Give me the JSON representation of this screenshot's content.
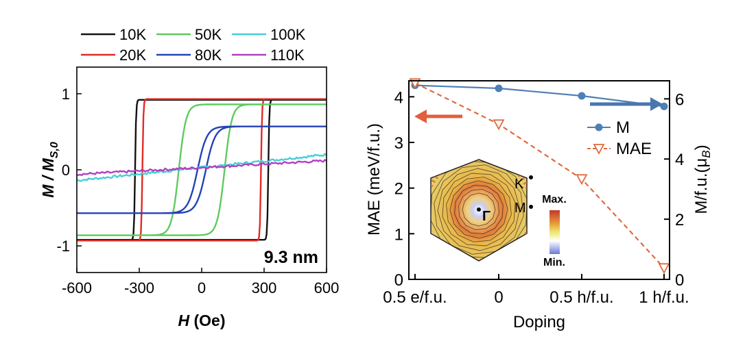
{
  "chart_data": [
    {
      "type": "line",
      "title": "",
      "xlabel": "H (Oe)",
      "ylabel": "M / M",
      "ylabel_sub": "S,0",
      "xlim": [
        -600,
        600
      ],
      "ylim": [
        -1.35,
        1.35
      ],
      "xticks": [
        -600,
        -300,
        0,
        300,
        600
      ],
      "xtick_labels": [
        "-600",
        "-300",
        "0",
        "300",
        "600"
      ],
      "yticks": [
        -1,
        0,
        1
      ],
      "ytick_labels": [
        "-1",
        "0",
        "1"
      ],
      "annotation": "9.3 nm",
      "legend": [
        {
          "label": "10K",
          "color": "#111111"
        },
        {
          "label": "50K",
          "color": "#5fca5f"
        },
        {
          "label": "100K",
          "color": "#45cfd8"
        },
        {
          "label": "20K",
          "color": "#e02a25"
        },
        {
          "label": "80K",
          "color": "#2342b8"
        },
        {
          "label": "110K",
          "color": "#b23fbf"
        }
      ],
      "series": [
        {
          "name": "10K",
          "color": "#111111",
          "hysteresis": true,
          "Ms": 0.92,
          "Hc": 320,
          "sharpness": 5
        },
        {
          "name": "20K",
          "color": "#e02a25",
          "hysteresis": true,
          "Ms": 0.93,
          "Hc": 285,
          "sharpness": 5
        },
        {
          "name": "50K",
          "color": "#5fca5f",
          "hysteresis": true,
          "Ms": 0.86,
          "Hc": 110,
          "sharpness": 35
        },
        {
          "name": "80K",
          "color": "#2342b8",
          "hysteresis": true,
          "Ms": 0.57,
          "Hc": 20,
          "sharpness": 45
        },
        {
          "name": "100K",
          "color": "#45cfd8",
          "hysteresis": false,
          "x": [
            -600,
            600
          ],
          "y": [
            -0.14,
            0.2
          ]
        },
        {
          "name": "110K",
          "color": "#b23fbf",
          "hysteresis": false,
          "x": [
            -600,
            600
          ],
          "y": [
            -0.06,
            0.12
          ]
        }
      ]
    },
    {
      "type": "line",
      "title": "",
      "categories": [
        "0.5 e/f.u.",
        "0",
        "0.5 h/f.u.",
        "1 h/f.u."
      ],
      "xlabel": "Doping",
      "ylabel": "MAE (meV/f.u.)",
      "ylabel_right": "M/f.u.(μ",
      "ylabel_right_sub": "B",
      "ylabel_right_tail": ")",
      "ylim": [
        0,
        4.35
      ],
      "yticks": [
        0,
        1,
        2,
        3,
        4
      ],
      "ylim_right": [
        0,
        6.6
      ],
      "yticks_right": [
        0,
        2,
        4,
        6
      ],
      "series": [
        {
          "name": "M",
          "axis": "right",
          "color": "#4f7fb5",
          "marker": "circle",
          "style": "solid",
          "values": [
            6.45,
            6.35,
            6.1,
            5.75
          ]
        },
        {
          "name": "MAE",
          "axis": "left",
          "color": "#e06a3e",
          "marker": "triangle-down",
          "style": "dashed",
          "values": [
            4.3,
            3.4,
            2.2,
            0.25
          ]
        }
      ],
      "legend": [
        {
          "label": "M",
          "color": "#4f7fb5",
          "marker": "circle"
        },
        {
          "label": "MAE",
          "color": "#e06a3e",
          "marker": "triangle-down"
        }
      ],
      "inset": {
        "kind": "brillouin-zone-heatmap",
        "points": [
          "K",
          "M",
          "Γ"
        ],
        "colorbar": {
          "max_label": "Max.",
          "min_label": "Min.",
          "colors": [
            "#c0392b",
            "#e8e060",
            "#ffffff",
            "#6a7ad8"
          ]
        }
      }
    }
  ]
}
